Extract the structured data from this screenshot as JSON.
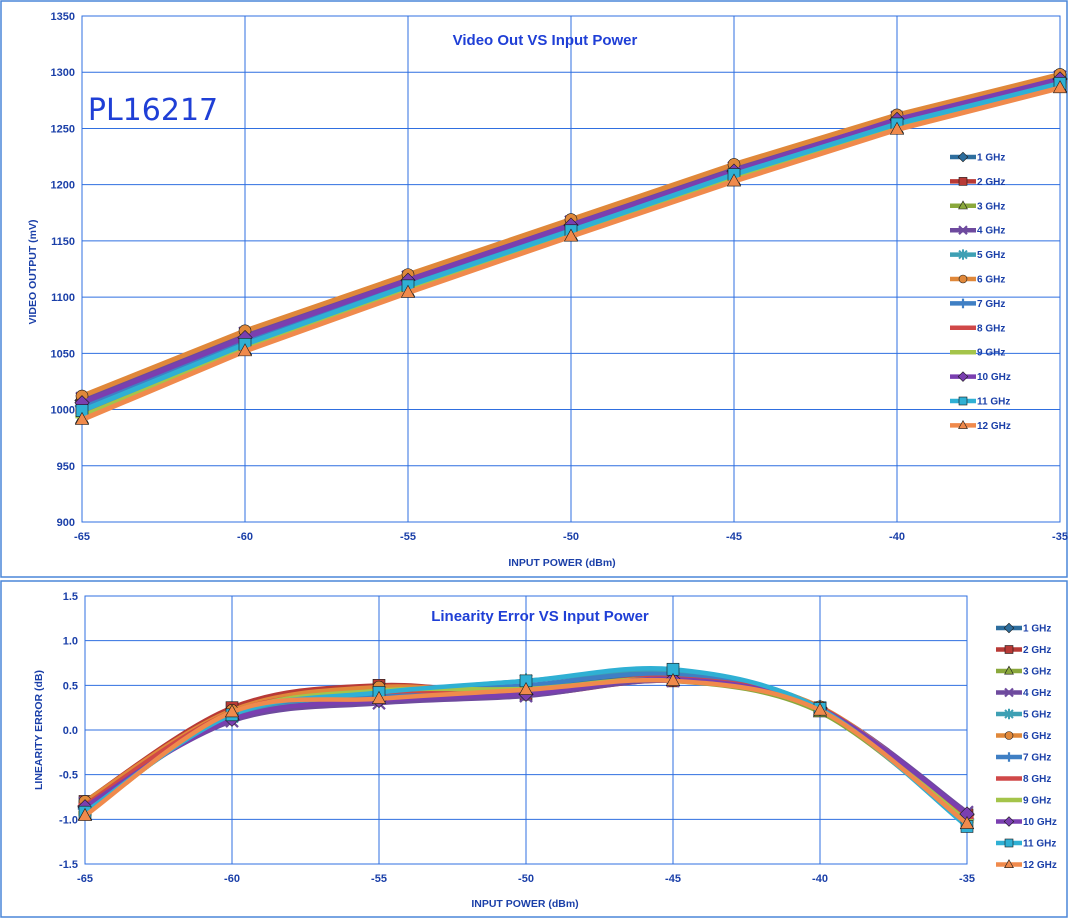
{
  "chart_data": [
    {
      "type": "line",
      "title": "Video Out VS Input Power",
      "annotation": "PL16217",
      "xlabel": "INPUT POWER (dBm)",
      "ylabel": "VIDEO OUTPUT (mV)",
      "x": [
        -65,
        -60,
        -55,
        -50,
        -45,
        -40,
        -35
      ],
      "xlim": [
        -65,
        -35
      ],
      "ylim": [
        900,
        1350
      ],
      "x_ticks": [
        "-65",
        "-60",
        "-55",
        "-50",
        "-45",
        "-40",
        "-35"
      ],
      "y_ticks": [
        "900",
        "950",
        "1000",
        "1050",
        "1100",
        "1150",
        "1200",
        "1250",
        "1300",
        "1350"
      ],
      "grid": true,
      "legend_position": "right",
      "series": [
        {
          "name": "1 GHz",
          "color": "#2e6e9e",
          "marker": "diamond",
          "values": [
            1008,
            1066,
            1117,
            1165,
            1213,
            1258,
            1294
          ]
        },
        {
          "name": "2 GHz",
          "color": "#b83a36",
          "marker": "square",
          "values": [
            1004,
            1063,
            1114,
            1163,
            1211,
            1257,
            1293
          ]
        },
        {
          "name": "3 GHz",
          "color": "#8aa83c",
          "marker": "triangle",
          "values": [
            992,
            1053,
            1105,
            1155,
            1204,
            1250,
            1287
          ]
        },
        {
          "name": "4 GHz",
          "color": "#6e4a9e",
          "marker": "x",
          "values": [
            1010,
            1068,
            1118,
            1167,
            1215,
            1260,
            1296
          ]
        },
        {
          "name": "5 GHz",
          "color": "#3ea0b4",
          "marker": "star",
          "values": [
            1001,
            1060,
            1111,
            1160,
            1209,
            1255,
            1292
          ]
        },
        {
          "name": "6 GHz",
          "color": "#e0883a",
          "marker": "circle",
          "values": [
            1012,
            1070,
            1120,
            1169,
            1218,
            1262,
            1298
          ]
        },
        {
          "name": "7 GHz",
          "color": "#3f7fc4",
          "marker": "plus",
          "values": [
            1003,
            1061,
            1112,
            1161,
            1210,
            1256,
            1292
          ]
        },
        {
          "name": "8 GHz",
          "color": "#d04848",
          "marker": "dash",
          "values": [
            998,
            1057,
            1108,
            1158,
            1207,
            1253,
            1290
          ]
        },
        {
          "name": "9 GHz",
          "color": "#a4c44a",
          "marker": "dash",
          "values": [
            994,
            1054,
            1106,
            1156,
            1205,
            1251,
            1288
          ]
        },
        {
          "name": "10 GHz",
          "color": "#7a3fb0",
          "marker": "diamond",
          "values": [
            1006,
            1064,
            1115,
            1164,
            1212,
            1258,
            1294
          ]
        },
        {
          "name": "11 GHz",
          "color": "#2fb0d4",
          "marker": "square",
          "values": [
            999,
            1058,
            1110,
            1159,
            1209,
            1254,
            1290
          ]
        },
        {
          "name": "12 GHz",
          "color": "#f08a4c",
          "marker": "triangle",
          "values": [
            991,
            1052,
            1104,
            1154,
            1203,
            1249,
            1286
          ]
        }
      ]
    },
    {
      "type": "line",
      "title": "Linearity Error VS Input Power",
      "xlabel": "INPUT POWER (dBm)",
      "ylabel": "LINEARITY ERROR (dB)",
      "x": [
        -65,
        -60,
        -55,
        -50,
        -45,
        -40,
        -35
      ],
      "xlim": [
        -65,
        -35
      ],
      "ylim": [
        -1.5,
        1.5
      ],
      "x_ticks": [
        "-65",
        "-60",
        "-55",
        "-50",
        "-45",
        "-40",
        "-35"
      ],
      "y_ticks": [
        "-1.5",
        "-1.0",
        "-0.5",
        "0.0",
        "0.5",
        "1.0",
        "1.5"
      ],
      "grid": true,
      "smooth": true,
      "legend_position": "right",
      "series": [
        {
          "name": "1 GHz",
          "color": "#2e6e9e",
          "marker": "diamond",
          "values": [
            -0.85,
            0.15,
            0.35,
            0.45,
            0.6,
            0.25,
            -0.95
          ]
        },
        {
          "name": "2 GHz",
          "color": "#b83a36",
          "marker": "square",
          "values": [
            -0.8,
            0.25,
            0.5,
            0.4,
            0.55,
            0.25,
            -0.95
          ]
        },
        {
          "name": "3 GHz",
          "color": "#8aa83c",
          "marker": "triangle",
          "values": [
            -0.95,
            0.2,
            0.45,
            0.45,
            0.55,
            0.2,
            -1.05
          ]
        },
        {
          "name": "4 GHz",
          "color": "#6e4a9e",
          "marker": "x",
          "values": [
            -0.82,
            0.1,
            0.3,
            0.38,
            0.55,
            0.25,
            -0.92
          ]
        },
        {
          "name": "5 GHz",
          "color": "#3ea0b4",
          "marker": "star",
          "values": [
            -0.9,
            0.15,
            0.4,
            0.55,
            0.65,
            0.25,
            -1.05
          ]
        },
        {
          "name": "6 GHz",
          "color": "#e0883a",
          "marker": "circle",
          "values": [
            -0.8,
            0.22,
            0.48,
            0.42,
            0.58,
            0.26,
            -0.97
          ]
        },
        {
          "name": "7 GHz",
          "color": "#3f7fc4",
          "marker": "plus",
          "values": [
            -0.88,
            0.18,
            0.38,
            0.5,
            0.62,
            0.24,
            -1.0
          ]
        },
        {
          "name": "8 GHz",
          "color": "#d04848",
          "marker": "dash",
          "values": [
            -0.84,
            0.2,
            0.42,
            0.44,
            0.58,
            0.25,
            -0.98
          ]
        },
        {
          "name": "9 GHz",
          "color": "#a4c44a",
          "marker": "dash",
          "values": [
            -0.93,
            0.18,
            0.44,
            0.46,
            0.56,
            0.22,
            -1.02
          ]
        },
        {
          "name": "10 GHz",
          "color": "#7a3fb0",
          "marker": "diamond",
          "values": [
            -0.86,
            0.12,
            0.33,
            0.4,
            0.57,
            0.24,
            -0.94
          ]
        },
        {
          "name": "11 GHz",
          "color": "#2fb0d4",
          "marker": "square",
          "values": [
            -0.92,
            0.17,
            0.42,
            0.55,
            0.68,
            0.24,
            -1.08
          ]
        },
        {
          "name": "12 GHz",
          "color": "#f08a4c",
          "marker": "triangle",
          "values": [
            -0.96,
            0.2,
            0.35,
            0.45,
            0.55,
            0.22,
            -1.05
          ]
        }
      ]
    }
  ]
}
